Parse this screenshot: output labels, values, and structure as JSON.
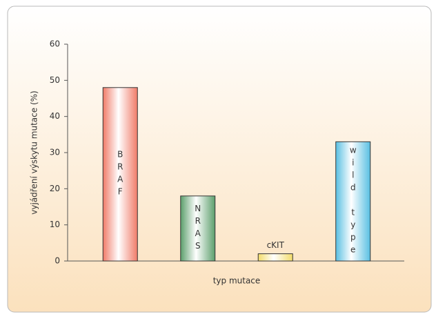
{
  "chart_data": {
    "type": "bar",
    "y_label": "vyjádření výskytu mutace (%)",
    "x_label": "typ mutace",
    "categories": [
      "BRAF",
      "NRAS",
      "cKIT",
      "wild type"
    ],
    "values": [
      48,
      18,
      2,
      33
    ],
    "colors": [
      "#f07b68",
      "#5c9f6c",
      "#f3dc6a",
      "#58bfe2"
    ],
    "ylim": [
      0,
      60
    ],
    "yticks": [
      0,
      10,
      20,
      30,
      40,
      50,
      60
    ],
    "grid": false
  }
}
